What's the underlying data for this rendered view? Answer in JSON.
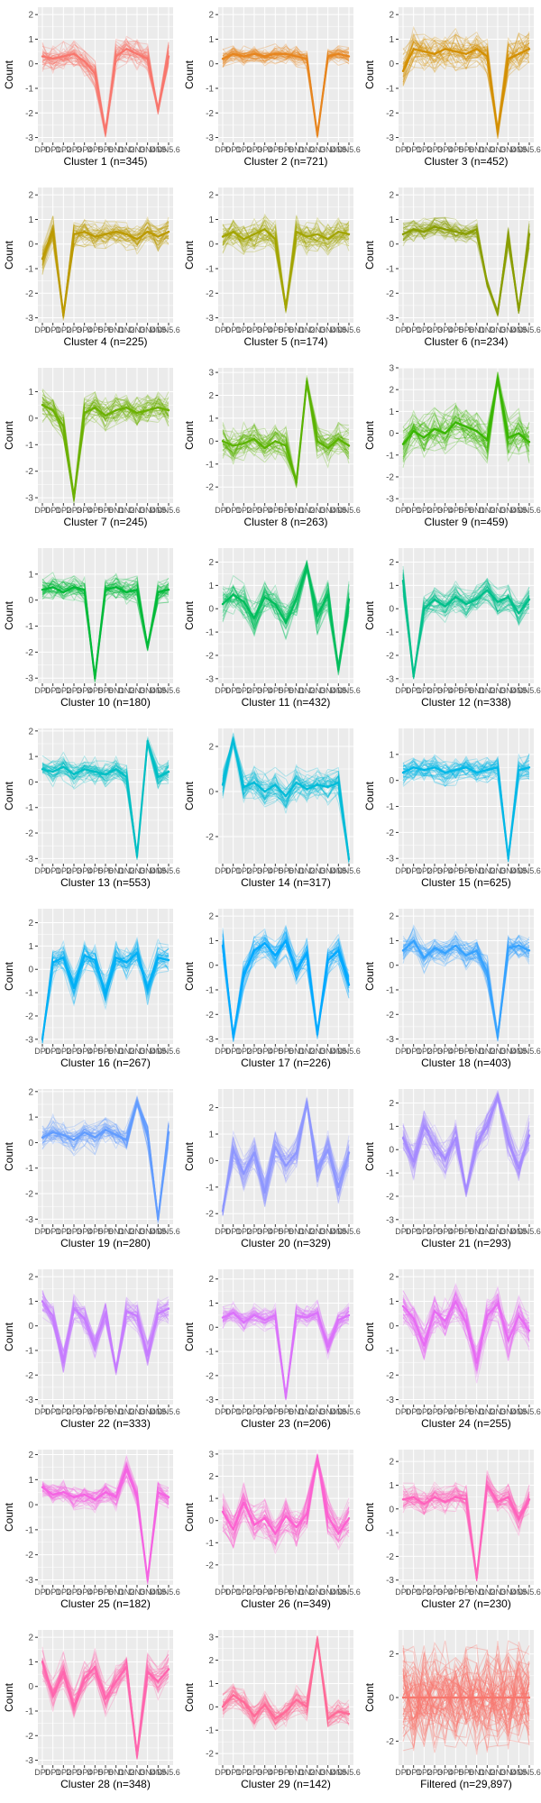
{
  "figure": {
    "y_axis_label": "Count",
    "x_tick_labels": [
      "DP0",
      "DP1",
      "DP2",
      "DP3",
      "DP4",
      "DP5",
      "DP6",
      "DN1",
      "DN2",
      "DN3",
      "DN4",
      "DN5",
      "DN5.6"
    ],
    "background": "#ebebeb",
    "gridline": "#ffffff"
  },
  "chart_data": [
    {
      "type": "line",
      "caption": "Cluster 1 (n=345)",
      "color": "#F8766D",
      "ylim": [
        -3.2,
        2.3
      ],
      "y_ticks": [
        -3,
        -2,
        -1,
        0,
        1,
        2
      ],
      "series": [
        {
          "values": [
            0.3,
            0.2,
            0.3,
            0.4,
            0.1,
            -0.4,
            -2.8,
            0.3,
            0.6,
            0.4,
            0.2,
            -1.9,
            0.3
          ]
        }
      ],
      "spread": 0.6
    },
    {
      "type": "line",
      "caption": "Cluster 2 (n=721)",
      "color": "#E7851E",
      "ylim": [
        -3.2,
        2.3
      ],
      "y_ticks": [
        -3,
        -2,
        -1,
        0,
        1,
        2
      ],
      "series": [
        {
          "values": [
            0.2,
            0.4,
            0.3,
            0.4,
            0.3,
            0.4,
            0.4,
            0.3,
            0.2,
            -2.9,
            0.3,
            0.4,
            0.3
          ]
        }
      ],
      "spread": 0.4
    },
    {
      "type": "line",
      "caption": "Cluster 3 (n=452)",
      "color": "#D38F00",
      "ylim": [
        -3.2,
        2.3
      ],
      "y_ticks": [
        -3,
        -2,
        -1,
        0,
        1,
        2
      ],
      "series": [
        {
          "values": [
            -0.3,
            0.6,
            0.5,
            0.4,
            0.6,
            0.5,
            0.4,
            0.6,
            0.3,
            -2.8,
            0.2,
            0.4,
            0.6
          ]
        }
      ],
      "spread": 0.8
    },
    {
      "type": "line",
      "caption": "Cluster 4 (n=225)",
      "color": "#BC9A00",
      "ylim": [
        -3.2,
        2.3
      ],
      "y_ticks": [
        -3,
        -2,
        -1,
        0,
        1,
        2
      ],
      "series": [
        {
          "values": [
            -0.6,
            0.5,
            -2.9,
            0.4,
            0.5,
            0.3,
            0.4,
            0.5,
            0.4,
            0.2,
            0.5,
            0.3,
            0.5
          ]
        }
      ],
      "spread": 0.6
    },
    {
      "type": "line",
      "caption": "Cluster 5 (n=174)",
      "color": "#A3A500",
      "ylim": [
        -3.2,
        2.3
      ],
      "y_ticks": [
        -3,
        -2,
        -1,
        0,
        1,
        2
      ],
      "series": [
        {
          "values": [
            0.3,
            0.5,
            0.2,
            0.4,
            0.6,
            0.2,
            -2.6,
            0.5,
            0.3,
            0.4,
            0.2,
            0.5,
            0.4
          ]
        }
      ],
      "spread": 0.7
    },
    {
      "type": "line",
      "caption": "Cluster 6 (n=234)",
      "color": "#8A9E00",
      "ylim": [
        -3.2,
        2.3
      ],
      "y_ticks": [
        -3,
        -2,
        -1,
        0,
        1,
        2
      ],
      "series": [
        {
          "values": [
            0.4,
            0.6,
            0.5,
            0.7,
            0.6,
            0.5,
            0.4,
            0.6,
            -1.6,
            -2.8,
            0.3,
            -2.7,
            0.4
          ]
        }
      ],
      "spread": 0.5
    },
    {
      "type": "line",
      "caption": "Cluster 7 (n=245)",
      "color": "#6BB100",
      "ylim": [
        -3.2,
        1.9
      ],
      "y_ticks": [
        -3,
        -2,
        -1,
        0,
        1
      ],
      "series": [
        {
          "values": [
            0.5,
            0.3,
            -0.3,
            -3.0,
            0.2,
            0.4,
            0.1,
            0.3,
            0.4,
            0.2,
            0.3,
            0.4,
            0.3
          ]
        }
      ],
      "spread": 0.6
    },
    {
      "type": "line",
      "caption": "Cluster 8 (n=263)",
      "color": "#5BB300",
      "ylim": [
        -2.7,
        3.2
      ],
      "y_ticks": [
        -2,
        -1,
        0,
        1,
        2,
        3
      ],
      "series": [
        {
          "values": [
            0.0,
            -0.2,
            -0.1,
            0.1,
            -0.3,
            0.0,
            -0.2,
            -1.8,
            2.6,
            0.0,
            -0.3,
            0.1,
            -0.2
          ]
        }
      ],
      "spread": 0.8
    },
    {
      "type": "line",
      "caption": "Cluster 9 (n=459)",
      "color": "#39B600",
      "ylim": [
        -3.2,
        3.0
      ],
      "y_ticks": [
        -3,
        -2,
        -1,
        0,
        1,
        2,
        3
      ],
      "series": [
        {
          "values": [
            -0.5,
            0.1,
            -0.2,
            0.2,
            0.0,
            0.5,
            0.3,
            0.1,
            -0.3,
            2.5,
            -0.2,
            0.0,
            -0.4
          ]
        }
      ],
      "spread": 1.0
    },
    {
      "type": "line",
      "caption": "Cluster 10 (n=180)",
      "color": "#00BA38",
      "ylim": [
        -3.2,
        2.0
      ],
      "y_ticks": [
        -3,
        -2,
        -1,
        0,
        1
      ],
      "series": [
        {
          "values": [
            0.4,
            0.5,
            0.3,
            0.5,
            0.4,
            -3.0,
            0.4,
            0.5,
            0.3,
            0.4,
            -1.8,
            0.3,
            0.4
          ]
        }
      ],
      "spread": 0.5
    },
    {
      "type": "line",
      "caption": "Cluster 11 (n=432)",
      "color": "#00BD5C",
      "ylim": [
        -3.2,
        2.6
      ],
      "y_ticks": [
        -3,
        -2,
        -1,
        0,
        1,
        2
      ],
      "series": [
        {
          "values": [
            0.2,
            0.6,
            0.3,
            -0.4,
            0.5,
            0.2,
            -0.6,
            0.4,
            1.8,
            -0.3,
            0.6,
            -2.6,
            0.4
          ]
        }
      ],
      "spread": 0.8
    },
    {
      "type": "line",
      "caption": "Cluster 12 (n=338)",
      "color": "#00C08B",
      "ylim": [
        -3.2,
        2.6
      ],
      "y_ticks": [
        -3,
        -2,
        -1,
        0,
        1,
        2
      ],
      "series": [
        {
          "values": [
            1.2,
            -2.9,
            0.0,
            0.4,
            0.1,
            0.5,
            0.2,
            0.4,
            0.8,
            0.3,
            0.5,
            -0.2,
            0.4
          ]
        }
      ],
      "spread": 0.6
    },
    {
      "type": "line",
      "caption": "Cluster 13 (n=553)",
      "color": "#00BFC4",
      "ylim": [
        -3.2,
        2.1
      ],
      "y_ticks": [
        -3,
        -2,
        -1,
        0,
        1,
        2
      ],
      "series": [
        {
          "values": [
            0.5,
            0.4,
            0.6,
            0.3,
            0.5,
            0.4,
            0.3,
            0.5,
            0.2,
            -2.9,
            1.6,
            0.2,
            0.4
          ]
        }
      ],
      "spread": 0.5
    },
    {
      "type": "line",
      "caption": "Cluster 14 (n=317)",
      "color": "#00BCD8",
      "ylim": [
        -3.2,
        2.8
      ],
      "y_ticks": [
        -2,
        0,
        2
      ],
      "series": [
        {
          "values": [
            0.3,
            2.3,
            0.2,
            0.4,
            0.0,
            0.3,
            -0.2,
            0.4,
            0.1,
            0.3,
            0.2,
            0.4,
            -3.0
          ]
        }
      ],
      "spread": 0.8
    },
    {
      "type": "line",
      "caption": "Cluster 15 (n=625)",
      "color": "#00B8E7",
      "ylim": [
        -3.2,
        2.0
      ],
      "y_ticks": [
        -3,
        -2,
        -1,
        0,
        1
      ],
      "series": [
        {
          "values": [
            0.3,
            0.5,
            0.4,
            0.5,
            0.3,
            0.4,
            0.5,
            0.3,
            0.4,
            0.5,
            -3.0,
            0.4,
            0.5
          ]
        }
      ],
      "spread": 0.5
    },
    {
      "type": "line",
      "caption": "Cluster 16 (n=267)",
      "color": "#00B0F6",
      "ylim": [
        -3.2,
        2.6
      ],
      "y_ticks": [
        -3,
        -2,
        -1,
        0,
        1,
        2
      ],
      "series": [
        {
          "values": [
            -3.0,
            0.3,
            0.5,
            -0.8,
            0.6,
            0.4,
            -1.0,
            0.5,
            0.3,
            0.7,
            -0.8,
            0.5,
            0.4
          ]
        }
      ],
      "spread": 0.7
    },
    {
      "type": "line",
      "caption": "Cluster 17 (n=226)",
      "color": "#00A9FF",
      "ylim": [
        -3.2,
        2.3
      ],
      "y_ticks": [
        -3,
        -2,
        -1,
        0,
        1,
        2
      ],
      "series": [
        {
          "values": [
            0.8,
            -2.9,
            -0.4,
            0.6,
            0.9,
            0.4,
            1.0,
            -0.2,
            0.5,
            -2.8,
            0.2,
            0.6,
            -0.8
          ]
        }
      ],
      "spread": 0.6
    },
    {
      "type": "line",
      "caption": "Cluster 18 (n=403)",
      "color": "#35A2FF",
      "ylim": [
        -3.2,
        2.3
      ],
      "y_ticks": [
        -3,
        -2,
        -1,
        0,
        1,
        2
      ],
      "series": [
        {
          "values": [
            0.6,
            1.0,
            0.3,
            0.7,
            0.5,
            0.8,
            0.4,
            0.6,
            -0.3,
            -2.9,
            0.7,
            0.8,
            0.6
          ]
        }
      ],
      "spread": 0.6
    },
    {
      "type": "line",
      "caption": "Cluster 19 (n=280)",
      "color": "#619CFF",
      "ylim": [
        -3.2,
        2.1
      ],
      "y_ticks": [
        -3,
        -2,
        -1,
        0,
        1,
        2
      ],
      "series": [
        {
          "values": [
            0.2,
            0.4,
            0.3,
            0.1,
            0.4,
            0.2,
            0.5,
            0.3,
            0.1,
            1.6,
            0.3,
            -3.0,
            0.4
          ]
        }
      ],
      "spread": 0.6
    },
    {
      "type": "line",
      "caption": "Cluster 20 (n=329)",
      "color": "#8E97FF",
      "ylim": [
        -2.4,
        2.7
      ],
      "y_ticks": [
        -2,
        -1,
        0,
        1,
        2
      ],
      "series": [
        {
          "values": [
            -1.9,
            0.4,
            -0.5,
            0.3,
            -1.2,
            0.5,
            -0.2,
            0.3,
            2.2,
            -0.3,
            0.4,
            -1.0,
            0.3
          ]
        }
      ],
      "spread": 0.7
    },
    {
      "type": "line",
      "caption": "Cluster 21 (n=293)",
      "color": "#A58AFF",
      "ylim": [
        -3.2,
        2.6
      ],
      "y_ticks": [
        -3,
        -2,
        -1,
        0,
        1,
        2
      ],
      "series": [
        {
          "values": [
            0.5,
            -0.5,
            1.0,
            0.2,
            -0.4,
            0.5,
            -1.8,
            0.3,
            1.0,
            2.3,
            0.4,
            -0.8,
            0.6
          ]
        }
      ],
      "spread": 0.8
    },
    {
      "type": "line",
      "caption": "Cluster 22 (n=333)",
      "color": "#C77CFF",
      "ylim": [
        -3.2,
        2.3
      ],
      "y_ticks": [
        -3,
        -2,
        -1,
        0,
        1,
        2
      ],
      "series": [
        {
          "values": [
            1.0,
            0.4,
            -1.4,
            0.7,
            0.3,
            -0.8,
            0.5,
            -1.8,
            0.6,
            0.4,
            -1.2,
            0.5,
            0.7
          ]
        }
      ],
      "spread": 0.6
    },
    {
      "type": "line",
      "caption": "Cluster 23 (n=206)",
      "color": "#DB72FB",
      "ylim": [
        -3.2,
        2.4
      ],
      "y_ticks": [
        -3,
        -2,
        -1,
        0,
        1,
        2
      ],
      "series": [
        {
          "values": [
            0.4,
            0.6,
            0.2,
            0.5,
            0.3,
            0.5,
            -2.9,
            0.5,
            0.4,
            0.6,
            -0.8,
            0.3,
            0.5
          ]
        }
      ],
      "spread": 0.5
    },
    {
      "type": "line",
      "caption": "Cluster 24 (n=255)",
      "color": "#E76BF3",
      "ylim": [
        -3.2,
        2.3
      ],
      "y_ticks": [
        -3,
        -2,
        -1,
        0,
        1,
        2
      ],
      "series": [
        {
          "values": [
            0.8,
            0.3,
            -0.8,
            0.6,
            0.2,
            1.0,
            0.1,
            -1.5,
            0.4,
            0.9,
            -0.6,
            0.4,
            -0.2
          ]
        }
      ],
      "spread": 0.8
    },
    {
      "type": "line",
      "caption": "Cluster 25 (n=182)",
      "color": "#F564E3",
      "ylim": [
        -3.2,
        2.2
      ],
      "y_ticks": [
        -3,
        -2,
        -1,
        0,
        1,
        2
      ],
      "series": [
        {
          "values": [
            0.7,
            0.4,
            0.5,
            0.3,
            0.4,
            0.2,
            0.5,
            0.3,
            1.4,
            0.3,
            -3.0,
            0.5,
            0.3
          ]
        }
      ],
      "spread": 0.5
    },
    {
      "type": "line",
      "caption": "Cluster 26 (n=349)",
      "color": "#FD61D1",
      "ylim": [
        -2.9,
        3.2
      ],
      "y_ticks": [
        -2,
        -1,
        0,
        1,
        2,
        3
      ],
      "series": [
        {
          "values": [
            0.4,
            -0.4,
            0.8,
            -0.2,
            0.1,
            -0.6,
            0.2,
            -0.3,
            0.3,
            2.8,
            0.2,
            -0.6,
            0.1
          ]
        }
      ],
      "spread": 0.8
    },
    {
      "type": "line",
      "caption": "Cluster 27 (n=230)",
      "color": "#FF62BC",
      "ylim": [
        -3.2,
        2.5
      ],
      "y_ticks": [
        -3,
        -2,
        -1,
        0,
        1,
        2
      ],
      "series": [
        {
          "values": [
            0.4,
            0.5,
            0.2,
            0.5,
            0.3,
            0.5,
            0.4,
            -2.9,
            1.0,
            0.3,
            0.5,
            -0.4,
            0.4
          ]
        }
      ],
      "spread": 0.6
    },
    {
      "type": "line",
      "caption": "Cluster 28 (n=348)",
      "color": "#FF65AE",
      "ylim": [
        -3.2,
        2.3
      ],
      "y_ticks": [
        -3,
        -2,
        -1,
        0,
        1,
        2
      ],
      "series": [
        {
          "values": [
            1.0,
            -0.4,
            0.6,
            -0.8,
            0.3,
            0.8,
            -0.5,
            0.2,
            0.8,
            -2.8,
            0.6,
            0.2,
            0.7
          ]
        }
      ],
      "spread": 0.7
    },
    {
      "type": "line",
      "caption": "Cluster 29 (n=142)",
      "color": "#FF6A98",
      "ylim": [
        -2.5,
        3.3
      ],
      "y_ticks": [
        -2,
        -1,
        0,
        1,
        2,
        3
      ],
      "series": [
        {
          "values": [
            0.0,
            0.5,
            0.2,
            -0.4,
            0.1,
            -0.5,
            -0.2,
            0.3,
            0.0,
            2.9,
            -0.5,
            -0.2,
            -0.3
          ]
        }
      ],
      "spread": 0.6
    },
    {
      "type": "line",
      "caption": "Filtered (n=29,897)",
      "color": "#F8766D",
      "ylim": [
        -3.1,
        3.1
      ],
      "y_ticks": [
        -2,
        0,
        2
      ],
      "series": [
        {
          "values": [
            0.0,
            0.0,
            0.0,
            0.0,
            0.0,
            0.0,
            0.0,
            0.0,
            0.0,
            0.0,
            0.0,
            0.0,
            0.0
          ]
        }
      ],
      "spread": 2.3
    }
  ]
}
